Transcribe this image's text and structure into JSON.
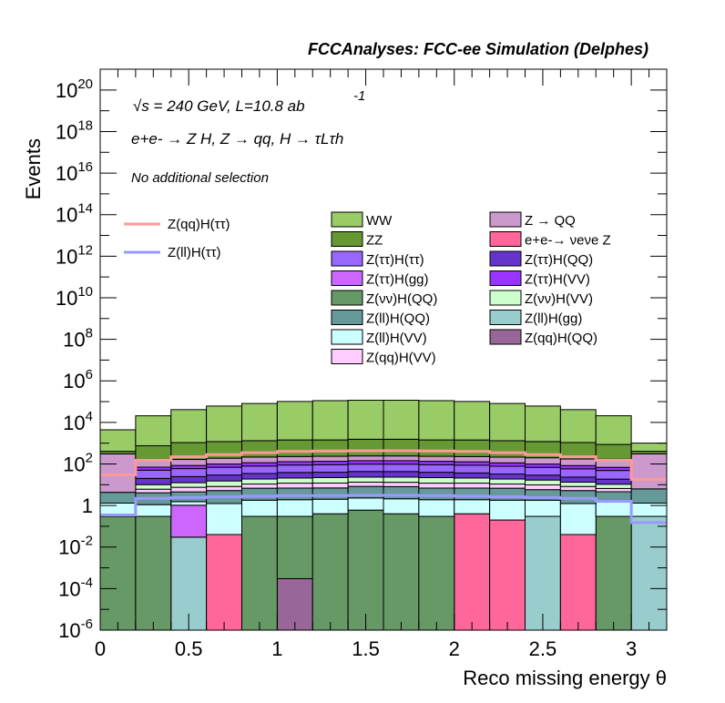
{
  "chart_data": {
    "type": "bar",
    "stacked": true,
    "header": "FCCAnalyses: FCC-ee Simulation (Delphes)",
    "annotations": [
      "√s = 240 GeV, L=10.8 ab",
      "-1",
      "e+e- → Z H, Z → qq, H → τLτh",
      "No additional selection"
    ],
    "xlabel": "Reco missing energy θ",
    "ylabel": "Events",
    "xlim": [
      0,
      3.2
    ],
    "ylim": [
      1e-06,
      1e+21
    ],
    "yscale": "log",
    "grid": false,
    "legend_position": "top-right, two stacks columns plus signal line column",
    "x_ticks": [
      "0",
      "0.5",
      "1",
      "1.5",
      "2",
      "2.5",
      "3"
    ],
    "x_tick_values": [
      0,
      0.5,
      1,
      1.5,
      2,
      2.5,
      3
    ],
    "y_ticks": [
      {
        "value": 1e-06,
        "base": "10",
        "exp": "-6"
      },
      {
        "value": 0.0001,
        "base": "10",
        "exp": "-4"
      },
      {
        "value": 0.01,
        "base": "10",
        "exp": "-2"
      },
      {
        "value": 1,
        "base": "1",
        "exp": ""
      },
      {
        "value": 100.0,
        "base": "10",
        "exp": "2"
      },
      {
        "value": 10000.0,
        "base": "10",
        "exp": "4"
      },
      {
        "value": 1000000.0,
        "base": "10",
        "exp": "6"
      },
      {
        "value": 100000000.0,
        "base": "10",
        "exp": "8"
      },
      {
        "value": 10000000000.0,
        "base": "10",
        "exp": "10"
      },
      {
        "value": 1000000000000.0,
        "base": "10",
        "exp": "12"
      },
      {
        "value": 100000000000000.0,
        "base": "10",
        "exp": "14"
      },
      {
        "value": 1e+16,
        "base": "10",
        "exp": "16"
      },
      {
        "value": 1e+18,
        "base": "10",
        "exp": "18"
      },
      {
        "value": 1e+20,
        "base": "10",
        "exp": "20"
      }
    ],
    "bin_edges": [
      0,
      0.2,
      0.4,
      0.6,
      0.8,
      1.0,
      1.2,
      1.4,
      1.6,
      1.8,
      2.0,
      2.2,
      2.4,
      2.6,
      2.8,
      3.0,
      3.2
    ],
    "stack": [
      {
        "name": "Z(qq)H(QQ)",
        "color": "#996699",
        "values": [
          0,
          0,
          0,
          0,
          0,
          0.0003,
          0,
          0,
          0,
          0,
          0,
          0,
          0,
          0,
          0,
          0
        ]
      },
      {
        "name": "Z(ll)H(gg)",
        "color": "#99cccc",
        "values": [
          0,
          0,
          0.03,
          0,
          0,
          0,
          0,
          0,
          0,
          0,
          0,
          0,
          0.3,
          0,
          0,
          0.3
        ]
      },
      {
        "name": "e+e-→ νeνe Z",
        "color": "#ff6699",
        "values": [
          0,
          0,
          0,
          0.04,
          0,
          0,
          0,
          0,
          0,
          0,
          0.4,
          0.2,
          0,
          0.04,
          0,
          0
        ]
      },
      {
        "name": "Z(νν)H(QQ)",
        "color": "#669966",
        "values": [
          0.3,
          0.3,
          0,
          0,
          0.3,
          0.3,
          0.4,
          0.6,
          0.4,
          0.3,
          0,
          0,
          0,
          0,
          0.3,
          0
        ]
      },
      {
        "name": "Z(ττ)H(gg)",
        "color": "#cc66ff",
        "values": [
          0,
          0,
          1.0,
          0,
          0,
          0,
          0,
          0,
          0,
          0,
          0,
          0,
          0,
          0,
          0,
          0
        ]
      },
      {
        "name": "Z(ll)H(VV)",
        "color": "#ccffff",
        "values": [
          1,
          0.8,
          0.5,
          1.2,
          1.5,
          1.6,
          1.6,
          1.7,
          1.7,
          1.6,
          1.5,
          1.6,
          1.5,
          1.2,
          1.3,
          1
        ]
      },
      {
        "name": "Z(ll)H(QQ)",
        "color": "#669999",
        "values": [
          3,
          3,
          3,
          4,
          5,
          5,
          5,
          6,
          6,
          5,
          5,
          5,
          4,
          4,
          3,
          5
        ]
      },
      {
        "name": "Z(qq)H(VV)",
        "color": "#ffccff",
        "values": [
          0,
          2,
          3,
          3,
          4,
          5,
          5,
          5,
          5,
          5,
          5,
          4,
          4,
          3,
          2,
          0
        ]
      },
      {
        "name": "Z(νν)H(VV)",
        "color": "#ccffcc",
        "values": [
          0,
          4,
          5,
          7,
          8,
          9,
          10,
          10,
          10,
          10,
          9,
          8,
          7,
          5,
          4,
          0
        ]
      },
      {
        "name": "Z(ττ)H(QQ)",
        "color": "#6633cc",
        "values": [
          0,
          10,
          12,
          14,
          16,
          18,
          18,
          20,
          20,
          18,
          16,
          14,
          12,
          10,
          8,
          0
        ]
      },
      {
        "name": "Z(ττ)H(ττ)",
        "color": "#9966ff",
        "values": [
          0,
          30,
          35,
          40,
          45,
          50,
          52,
          55,
          55,
          52,
          50,
          45,
          40,
          35,
          30,
          0
        ]
      },
      {
        "name": "Z(ττ)H(VV)",
        "color": "#9933ff",
        "values": [
          0,
          20,
          25,
          30,
          35,
          40,
          42,
          45,
          45,
          42,
          40,
          35,
          30,
          25,
          20,
          0
        ]
      },
      {
        "name": "Z → QQ",
        "color": "#cc99cc",
        "values": [
          300,
          80,
          80,
          90,
          100,
          100,
          100,
          100,
          100,
          100,
          100,
          100,
          100,
          90,
          100,
          300
        ]
      },
      {
        "name": "ZZ",
        "color": "#669933",
        "values": [
          100,
          600,
          900,
          1000,
          1100,
          1200,
          1200,
          1300,
          1300,
          1200,
          1200,
          1100,
          1000,
          900,
          700,
          100
        ]
      },
      {
        "name": "WW",
        "color": "#99cc66",
        "values": [
          4000,
          20000,
          40000,
          60000,
          80000,
          100000,
          110000,
          115000,
          115000,
          110000,
          100000,
          80000,
          60000,
          40000,
          20000,
          600
        ]
      }
    ],
    "signal": [
      {
        "name": "Z(qq)H(ττ)",
        "color": "#ff9999",
        "values": [
          30,
          150,
          220,
          280,
          350,
          400,
          420,
          430,
          430,
          420,
          400,
          350,
          280,
          220,
          150,
          18
        ]
      },
      {
        "name": "Z(ll)H(ττ)",
        "color": "#9999ff",
        "values": [
          0.35,
          2.2,
          2.4,
          2.6,
          2.8,
          3.0,
          3.0,
          3.1,
          3.1,
          3.0,
          2.8,
          2.6,
          2.4,
          2.2,
          1.6,
          0.15
        ]
      }
    ],
    "legend_col1": [
      {
        "name": "WW",
        "color": "#99cc66"
      },
      {
        "name": "ZZ",
        "color": "#669933"
      },
      {
        "name": "Z(ττ)H(ττ)",
        "color": "#9966ff"
      },
      {
        "name": "Z(ττ)H(gg)",
        "color": "#cc66ff"
      },
      {
        "name": "Z(νν)H(QQ)",
        "color": "#669966"
      },
      {
        "name": "Z(ll)H(QQ)",
        "color": "#669999"
      },
      {
        "name": "Z(ll)H(VV)",
        "color": "#ccffff"
      },
      {
        "name": "Z(qq)H(VV)",
        "color": "#ffccff"
      }
    ],
    "legend_col2": [
      {
        "name": "Z → QQ",
        "color": "#cc99cc"
      },
      {
        "name": "e+e-→ νeνe Z",
        "color": "#ff6699"
      },
      {
        "name": "Z(ττ)H(QQ)",
        "color": "#6633cc"
      },
      {
        "name": "Z(ττ)H(VV)",
        "color": "#9933ff"
      },
      {
        "name": "Z(νν)H(VV)",
        "color": "#ccffcc"
      },
      {
        "name": "Z(ll)H(gg)",
        "color": "#99cccc"
      },
      {
        "name": "Z(qq)H(QQ)",
        "color": "#996699"
      }
    ]
  }
}
